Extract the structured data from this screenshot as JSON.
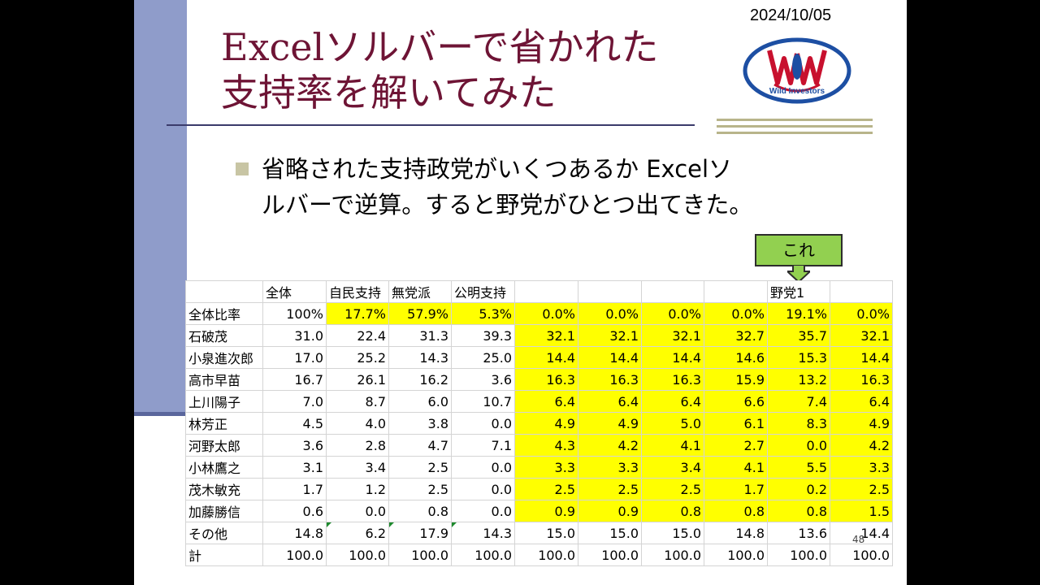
{
  "slide": {
    "date": "2024/10/05",
    "title_line1": "Excelソルバーで省かれた",
    "title_line2": "支持率を解いてみた",
    "logo_text": "Wild Investors",
    "bullet_line1": "省略された支持政党がいくつあるか Excelソ",
    "bullet_line2": "ルバーで逆算。すると野党がひとつ出てきた。",
    "callout_label": "これ",
    "page_number": "48"
  },
  "colors": {
    "title": "#6e1435",
    "highlight": "#ffff00",
    "callout": "#92d050",
    "side_bar": "#8f9cca",
    "bullet": "#c8c5a4"
  },
  "table": {
    "headers": [
      "",
      "全体",
      "自民支持",
      "無党派",
      "公明支持",
      "",
      "",
      "",
      "",
      "野党1",
      ""
    ],
    "rows": [
      {
        "label": "全体比率",
        "values": [
          "100%",
          "17.7%",
          "57.9%",
          "5.3%",
          "0.0%",
          "0.0%",
          "0.0%",
          "0.0%",
          "19.1%",
          "0.0%"
        ]
      },
      {
        "label": "石破茂",
        "values": [
          "31.0",
          "22.4",
          "31.3",
          "39.3",
          "32.1",
          "32.1",
          "32.1",
          "32.7",
          "35.7",
          "32.1"
        ]
      },
      {
        "label": "小泉進次郎",
        "values": [
          "17.0",
          "25.2",
          "14.3",
          "25.0",
          "14.4",
          "14.4",
          "14.4",
          "14.6",
          "15.3",
          "14.4"
        ]
      },
      {
        "label": "高市早苗",
        "values": [
          "16.7",
          "26.1",
          "16.2",
          "3.6",
          "16.3",
          "16.3",
          "16.3",
          "15.9",
          "13.2",
          "16.3"
        ]
      },
      {
        "label": "上川陽子",
        "values": [
          "7.0",
          "8.7",
          "6.0",
          "10.7",
          "6.4",
          "6.4",
          "6.4",
          "6.6",
          "7.4",
          "6.4"
        ]
      },
      {
        "label": "林芳正",
        "values": [
          "4.5",
          "4.0",
          "3.8",
          "0.0",
          "4.9",
          "4.9",
          "5.0",
          "6.1",
          "8.3",
          "4.9"
        ]
      },
      {
        "label": "河野太郎",
        "values": [
          "3.6",
          "2.8",
          "4.7",
          "7.1",
          "4.3",
          "4.2",
          "4.1",
          "2.7",
          "0.0",
          "4.2"
        ]
      },
      {
        "label": "小林鷹之",
        "values": [
          "3.1",
          "3.4",
          "2.5",
          "0.0",
          "3.3",
          "3.3",
          "3.4",
          "4.1",
          "5.5",
          "3.3"
        ]
      },
      {
        "label": "茂木敏充",
        "values": [
          "1.7",
          "1.2",
          "2.5",
          "0.0",
          "2.5",
          "2.5",
          "2.5",
          "1.7",
          "0.2",
          "2.5"
        ]
      },
      {
        "label": "加藤勝信",
        "values": [
          "0.6",
          "0.0",
          "0.8",
          "0.0",
          "0.9",
          "0.9",
          "0.8",
          "0.8",
          "0.8",
          "1.5"
        ]
      },
      {
        "label": "その他",
        "values": [
          "14.8",
          "6.2",
          "17.9",
          "14.3",
          "15.0",
          "15.0",
          "15.0",
          "14.8",
          "13.6",
          "14.4"
        ]
      },
      {
        "label": "計",
        "values": [
          "100.0",
          "100.0",
          "100.0",
          "100.0",
          "100.0",
          "100.0",
          "100.0",
          "100.0",
          "100.0",
          "100.0"
        ]
      }
    ]
  }
}
